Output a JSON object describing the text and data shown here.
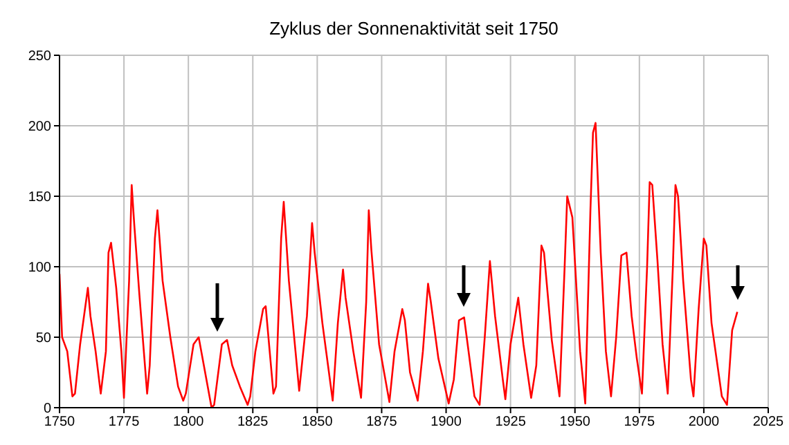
{
  "chart_data": {
    "type": "line",
    "title": "Zyklus der Sonnenaktivität seit 1750",
    "x": [
      1750,
      1751,
      1753,
      1755,
      1756,
      1758,
      1761,
      1762,
      1764,
      1766,
      1768,
      1769,
      1770,
      1772,
      1774,
      1775,
      1777,
      1778,
      1779,
      1781,
      1784,
      1785,
      1787,
      1788,
      1790,
      1793,
      1796,
      1798,
      1799,
      1802,
      1804,
      1806,
      1809,
      1810,
      1813,
      1815,
      1817,
      1820,
      1823,
      1824,
      1826,
      1829,
      1830,
      1833,
      1834,
      1836,
      1837,
      1839,
      1843,
      1846,
      1848,
      1849,
      1852,
      1856,
      1858,
      1860,
      1861,
      1864,
      1867,
      1869,
      1870,
      1871,
      1874,
      1878,
      1880,
      1883,
      1884,
      1886,
      1889,
      1891,
      1893,
      1894,
      1897,
      1901,
      1903,
      1905,
      1907,
      1908,
      1911,
      1913,
      1915,
      1917,
      1919,
      1922,
      1923,
      1925,
      1928,
      1930,
      1933,
      1935,
      1937,
      1938,
      1941,
      1944,
      1946,
      1947,
      1949,
      1952,
      1954,
      1956,
      1957,
      1958,
      1960,
      1962,
      1964,
      1966,
      1968,
      1970,
      1972,
      1974,
      1976,
      1978,
      1979,
      1980,
      1982,
      1984,
      1986,
      1988,
      1989,
      1990,
      1992,
      1995,
      1996,
      1998,
      2000,
      2001,
      2003,
      2007,
      2009,
      2011,
      2013
    ],
    "series": [
      {
        "color": "#ff0000",
        "values": [
          95,
          50,
          40,
          8,
          10,
          45,
          85,
          65,
          40,
          10,
          40,
          110,
          117,
          85,
          40,
          7,
          90,
          158,
          130,
          80,
          10,
          30,
          120,
          140,
          90,
          50,
          15,
          5,
          10,
          45,
          50,
          30,
          0,
          2,
          45,
          48,
          30,
          15,
          2,
          8,
          40,
          70,
          72,
          10,
          15,
          120,
          146,
          90,
          12,
          65,
          131,
          110,
          60,
          5,
          60,
          98,
          78,
          40,
          7,
          75,
          140,
          112,
          45,
          4,
          40,
          70,
          62,
          25,
          5,
          40,
          88,
          76,
          35,
          3,
          20,
          62,
          64,
          50,
          8,
          2,
          50,
          104,
          65,
          20,
          6,
          45,
          78,
          45,
          7,
          30,
          115,
          110,
          48,
          8,
          100,
          150,
          135,
          40,
          3,
          140,
          195,
          202,
          110,
          40,
          8,
          50,
          108,
          110,
          65,
          35,
          10,
          100,
          160,
          158,
          105,
          45,
          10,
          100,
          158,
          150,
          90,
          20,
          8,
          70,
          120,
          115,
          60,
          8,
          2,
          55,
          68
        ]
      }
    ],
    "xlim": [
      1750,
      2025
    ],
    "xticks": [
      1750,
      1775,
      1800,
      1825,
      1850,
      1875,
      1900,
      1925,
      1950,
      1975,
      2000,
      2025
    ],
    "ylim": [
      0,
      250
    ],
    "yticks": [
      0,
      50,
      100,
      150,
      200,
      250
    ],
    "grid": true,
    "marker": "none",
    "line_style": "solid",
    "legend": false
  }
}
